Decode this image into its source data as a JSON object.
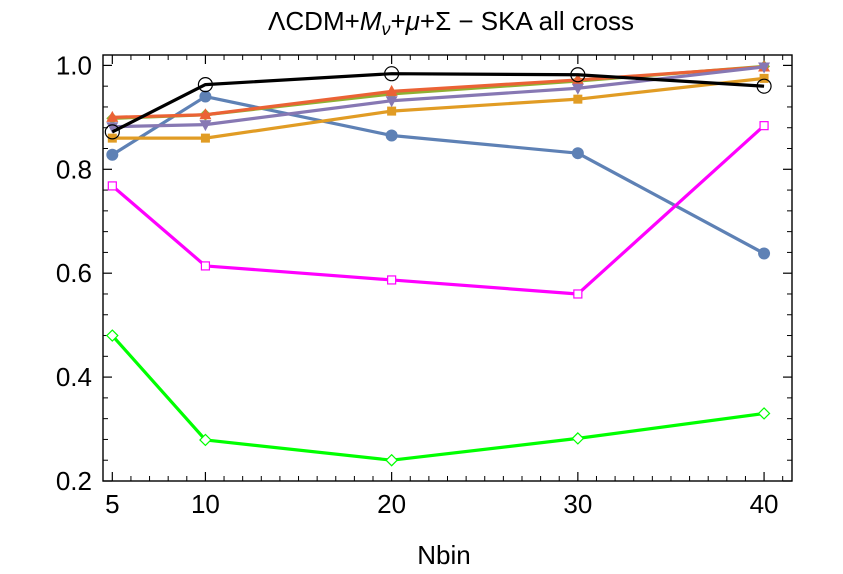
{
  "chart_data": {
    "type": "line",
    "title_parts": [
      "ΛCDM+",
      "M",
      "ν",
      "+",
      "μ",
      "+Σ − SKA all cross"
    ],
    "xlabel": "Nbin",
    "ylabel": "",
    "x": [
      5,
      10,
      20,
      30,
      40
    ],
    "xticks": [
      5,
      10,
      20,
      30,
      40
    ],
    "xtick_labels": [
      "5",
      "10",
      "20",
      "30",
      "40"
    ],
    "yticks": [
      0.2,
      0.4,
      0.6,
      0.8,
      1.0
    ],
    "ytick_labels": [
      "0.2",
      "0.4",
      "0.6",
      "0.8",
      "1.0"
    ],
    "xlim": [
      4.5,
      41.5
    ],
    "ylim": [
      0.2,
      1.02
    ],
    "series": [
      {
        "name": "blue",
        "color": "#5e81b5",
        "marker": "circle-filled",
        "values": [
          0.828,
          0.94,
          0.865,
          0.831,
          0.638
        ]
      },
      {
        "name": "orange",
        "color": "#e19c24",
        "marker": "square-filled",
        "values": [
          0.86,
          0.86,
          0.912,
          0.935,
          0.975
        ]
      },
      {
        "name": "green",
        "color": "#8fb032",
        "marker": "diamond-filled",
        "values": [
          0.898,
          0.905,
          0.945,
          0.97,
          0.998
        ]
      },
      {
        "name": "red",
        "color": "#eb6235",
        "marker": "triangle-up-filled",
        "values": [
          0.9,
          0.905,
          0.95,
          0.972,
          0.997
        ]
      },
      {
        "name": "purple",
        "color": "#8778b3",
        "marker": "triangle-down-filled",
        "values": [
          0.882,
          0.886,
          0.932,
          0.956,
          0.997
        ]
      },
      {
        "name": "black",
        "color": "#000000",
        "marker": "circle-open",
        "values": [
          0.872,
          0.963,
          0.984,
          0.982,
          0.96
        ]
      },
      {
        "name": "magenta",
        "color": "#ff00ff",
        "marker": "square-open",
        "values": [
          0.768,
          0.614,
          0.587,
          0.56,
          0.884
        ]
      },
      {
        "name": "lime",
        "color": "#00ff00",
        "marker": "diamond-open",
        "values": [
          0.48,
          0.279,
          0.24,
          0.282,
          0.33
        ]
      }
    ]
  }
}
